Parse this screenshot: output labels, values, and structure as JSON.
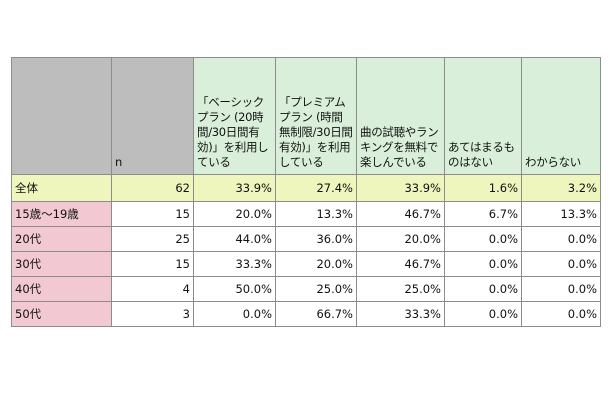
{
  "columns": {
    "n": "n",
    "q1": "「ベーシックプラン (20時間/30日間有効)」を利用している",
    "q2": "「プレミアムプラン (時間無制限/30日間有効)」を利用している",
    "q3": "曲の試聴やランキングを無料で楽しんでいる",
    "q4": "あてはまるものはない",
    "q5": "わからない"
  },
  "rows": [
    {
      "label": "全体",
      "n": "62",
      "v1": "33.9%",
      "v2": "27.4%",
      "v3": "33.9%",
      "v4": "1.6%",
      "v5": "3.2%"
    },
    {
      "label": "15歳～19歳",
      "n": "15",
      "v1": "20.0%",
      "v2": "13.3%",
      "v3": "46.7%",
      "v4": "6.7%",
      "v5": "13.3%"
    },
    {
      "label": "20代",
      "n": "25",
      "v1": "44.0%",
      "v2": "36.0%",
      "v3": "20.0%",
      "v4": "0.0%",
      "v5": "0.0%"
    },
    {
      "label": "30代",
      "n": "15",
      "v1": "33.3%",
      "v2": "20.0%",
      "v3": "46.7%",
      "v4": "0.0%",
      "v5": "0.0%"
    },
    {
      "label": "40代",
      "n": "4",
      "v1": "50.0%",
      "v2": "25.0%",
      "v3": "25.0%",
      "v4": "0.0%",
      "v5": "0.0%"
    },
    {
      "label": "50代",
      "n": "3",
      "v1": "0.0%",
      "v2": "66.7%",
      "v3": "33.3%",
      "v4": "0.0%",
      "v5": "0.0%"
    }
  ],
  "colors": {
    "header_bg": "#d9efd9",
    "corner_bg": "#bdbdbd",
    "total_row_bg": "#eef5bd",
    "group_label_bg": "#f2c9d2",
    "border": "#8c8c8c"
  }
}
